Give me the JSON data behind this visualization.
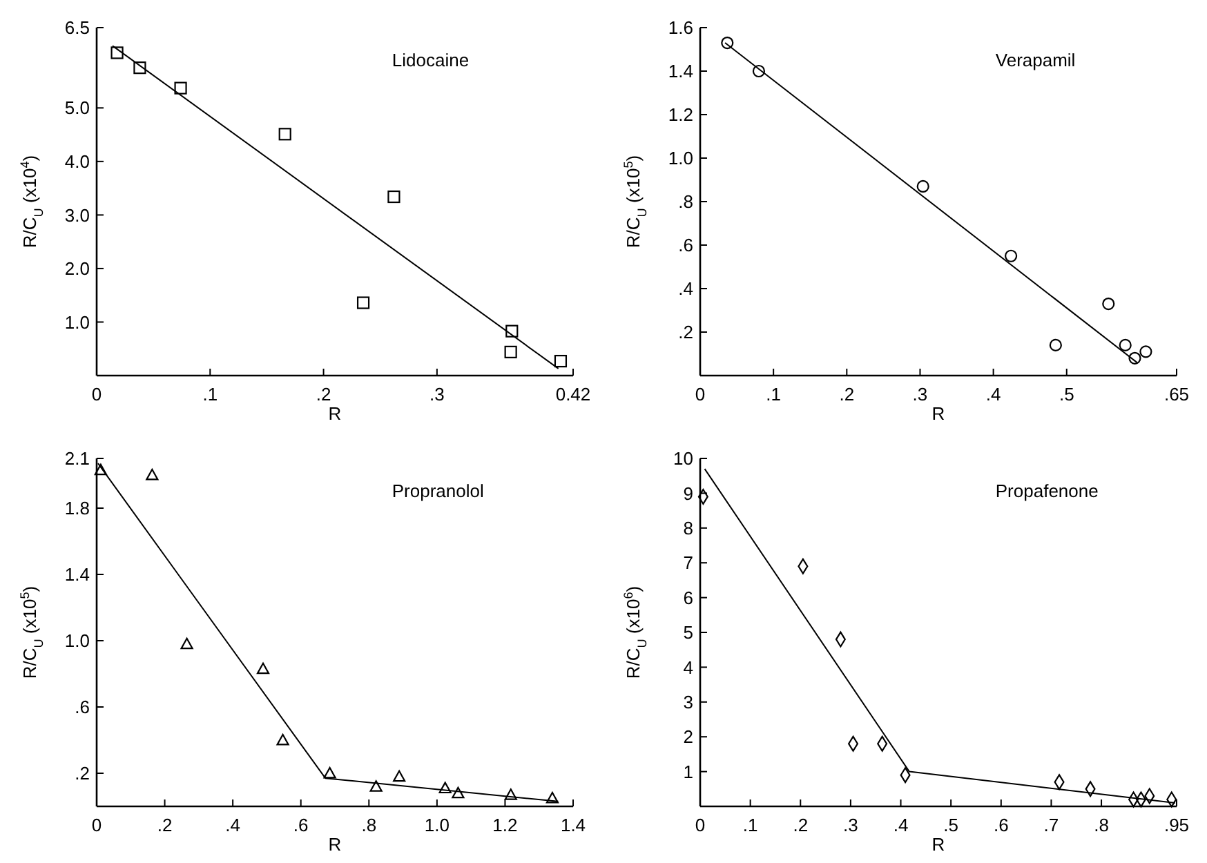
{
  "chart_data": [
    {
      "type": "scatter",
      "title": "Lidocaine",
      "xlabel": "R",
      "ylabel": "R/C$_{U}$ (x10$^{4}$)",
      "xlim": [
        0,
        0.42
      ],
      "ylim": [
        0,
        6.5
      ],
      "xticks": [
        0,
        {
          "value": 0.1,
          "label": ".1"
        },
        {
          "value": 0.2,
          "label": ".2"
        },
        {
          "value": 0.3,
          "label": ".3"
        },
        0.42
      ],
      "yticks": [
        {
          "value": 1,
          "label": "1.0"
        },
        {
          "value": 2,
          "label": "2.0"
        },
        {
          "value": 3,
          "label": "3.0"
        },
        {
          "value": 4,
          "label": "4.0"
        },
        {
          "value": 5,
          "label": "5.0"
        },
        6.5
      ],
      "grid": false,
      "series": [
        {
          "type": "scatter",
          "marker": "square",
          "color": "#000000",
          "x": [
            0.018,
            0.038,
            0.074,
            0.166,
            0.262,
            0.235,
            0.366,
            0.365,
            0.409
          ],
          "values": [
            6.03,
            5.75,
            5.37,
            4.51,
            3.34,
            1.36,
            0.83,
            0.44,
            0.27
          ]
        },
        {
          "type": "line",
          "marker": "none",
          "color": "#000000",
          "x": [
            0.014,
            0.407
          ],
          "values": [
            6.16,
            0.13
          ]
        }
      ]
    },
    {
      "type": "scatter",
      "title": "Verapamil",
      "xlabel": "R",
      "ylabel": "R/C$_{U}$ (x10$^{5}$)",
      "xlim": [
        0,
        0.65
      ],
      "ylim": [
        0,
        1.6
      ],
      "xticks": [
        0,
        {
          "value": 0.1,
          "label": ".1"
        },
        {
          "value": 0.2,
          "label": ".2"
        },
        {
          "value": 0.3,
          "label": ".3"
        },
        {
          "value": 0.4,
          "label": ".4"
        },
        {
          "value": 0.5,
          "label": ".5"
        },
        {
          "value": 0.65,
          "label": ".65"
        }
      ],
      "yticks": [
        {
          "value": 0.2,
          "label": ".2"
        },
        {
          "value": 0.4,
          "label": ".4"
        },
        {
          "value": 0.6,
          "label": ".6"
        },
        {
          "value": 0.8,
          "label": ".8"
        },
        {
          "value": 1.0,
          "label": "1.0"
        },
        1.2,
        1.4,
        1.6
      ],
      "grid": false,
      "series": [
        {
          "type": "scatter",
          "marker": "circle",
          "color": "#000000",
          "x": [
            0.037,
            0.08,
            0.304,
            0.424,
            0.485,
            0.557,
            0.58,
            0.593,
            0.608
          ],
          "values": [
            1.53,
            1.4,
            0.87,
            0.55,
            0.14,
            0.33,
            0.14,
            0.08,
            0.11
          ]
        },
        {
          "type": "line",
          "marker": "none",
          "color": "#000000",
          "x": [
            0.034,
            0.596
          ],
          "values": [
            1.53,
            0.06
          ]
        }
      ]
    },
    {
      "type": "scatter",
      "title": "Propranolol",
      "xlabel": "R",
      "ylabel": "R/C$_{U}$ (x10$^{5}$)",
      "xlim": [
        0,
        1.4
      ],
      "ylim": [
        0,
        2.1
      ],
      "xticks": [
        0,
        {
          "value": 0.2,
          "label": ".2"
        },
        {
          "value": 0.4,
          "label": ".4"
        },
        {
          "value": 0.6,
          "label": ".6"
        },
        {
          "value": 0.8,
          "label": ".8"
        },
        {
          "value": 1.0,
          "label": "1.0"
        },
        1.2,
        1.4
      ],
      "yticks": [
        {
          "value": 0.2,
          "label": ".2"
        },
        {
          "value": 0.6,
          "label": ".6"
        },
        {
          "value": 1.0,
          "label": "1.0"
        },
        1.4,
        1.8,
        2.1
      ],
      "grid": false,
      "series": [
        {
          "type": "scatter",
          "marker": "triangle",
          "color": "#000000",
          "x": [
            0.012,
            0.163,
            0.265,
            0.489,
            0.547,
            0.685,
            0.821,
            0.889,
            1.024,
            1.062,
            1.217,
            1.339
          ],
          "values": [
            2.03,
            2.0,
            0.98,
            0.83,
            0.4,
            0.2,
            0.12,
            0.18,
            0.11,
            0.08,
            0.07,
            0.05
          ]
        },
        {
          "type": "line",
          "marker": "none",
          "color": "#000000",
          "x": [
            0.004,
            0.672,
            1.356
          ],
          "values": [
            2.07,
            0.17,
            0.03
          ]
        }
      ]
    },
    {
      "type": "scatter",
      "title": "Propafenone",
      "xlabel": "R",
      "ylabel": "R/C$_{U}$ (x10$^{6}$)",
      "xlim": [
        0,
        0.95
      ],
      "ylim": [
        0,
        10
      ],
      "xticks": [
        0,
        {
          "value": 0.1,
          "label": ".1"
        },
        {
          "value": 0.2,
          "label": ".2"
        },
        {
          "value": 0.3,
          "label": ".3"
        },
        {
          "value": 0.4,
          "label": ".4"
        },
        {
          "value": 0.5,
          "label": ".5"
        },
        {
          "value": 0.6,
          "label": ".6"
        },
        {
          "value": 0.7,
          "label": ".7"
        },
        {
          "value": 0.8,
          "label": ".8"
        },
        {
          "value": 0.95,
          "label": ".95"
        }
      ],
      "yticks": [
        1,
        2,
        3,
        4,
        5,
        6,
        7,
        8,
        9,
        10
      ],
      "grid": false,
      "series": [
        {
          "type": "scatter",
          "marker": "diamond",
          "color": "#000000",
          "x": [
            0.006,
            0.205,
            0.28,
            0.305,
            0.363,
            0.409,
            0.716,
            0.778,
            0.864,
            0.879,
            0.896,
            0.94
          ],
          "values": [
            8.9,
            6.9,
            4.8,
            1.8,
            1.8,
            0.9,
            0.7,
            0.5,
            0.2,
            0.2,
            0.3,
            0.2
          ]
        },
        {
          "type": "line",
          "marker": "none",
          "color": "#000000",
          "x": [
            0.009,
            0.417,
            0.947
          ],
          "values": [
            9.7,
            1.0,
            0.1
          ]
        }
      ]
    }
  ]
}
